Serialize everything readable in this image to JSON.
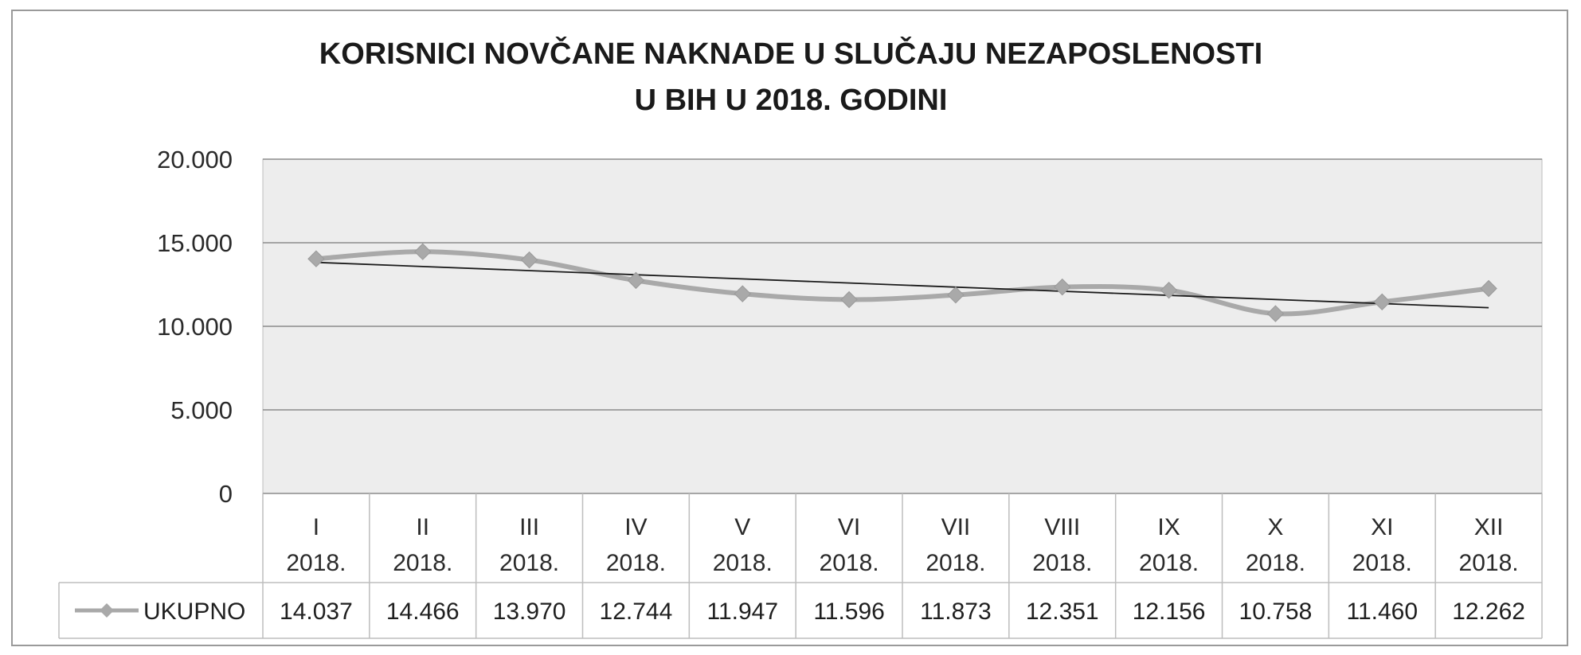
{
  "chart_data": {
    "type": "line",
    "title_lines": [
      "KORISNICI NOVČANE NAKNADE U SLUČAJU NEZAPOSLENOSTI",
      "U BIH U 2018. GODINI"
    ],
    "categories": [
      [
        "I",
        "2018."
      ],
      [
        "II",
        "2018."
      ],
      [
        "III",
        "2018."
      ],
      [
        "IV",
        "2018."
      ],
      [
        "V",
        "2018."
      ],
      [
        "VI",
        "2018."
      ],
      [
        "VII",
        "2018."
      ],
      [
        "VIII",
        "2018."
      ],
      [
        "IX",
        "2018."
      ],
      [
        "X",
        "2018."
      ],
      [
        "XI",
        "2018."
      ],
      [
        "XII",
        "2018."
      ]
    ],
    "series": [
      {
        "name": "UKUPNO",
        "values": [
          14037,
          14466,
          13970,
          12744,
          11947,
          11596,
          11873,
          12351,
          12156,
          10758,
          11460,
          12262
        ],
        "value_labels": [
          "14.037",
          "14.466",
          "13.970",
          "12.744",
          "11.947",
          "11.596",
          "11.873",
          "12.351",
          "12.156",
          "10.758",
          "11.460",
          "12.262"
        ],
        "color": "#a9a9a9",
        "marker": "diamond"
      }
    ],
    "trendline": {
      "type": "linear",
      "color": "#1a1a1a"
    },
    "ylim": [
      0,
      20000
    ],
    "yticks": [
      0,
      5000,
      10000,
      15000,
      20000
    ],
    "ytick_labels": [
      "0",
      "5.000",
      "10.000",
      "15.000",
      "20.000"
    ],
    "grid": true,
    "plot_background": "#ededed",
    "legend": "data-table-left"
  }
}
